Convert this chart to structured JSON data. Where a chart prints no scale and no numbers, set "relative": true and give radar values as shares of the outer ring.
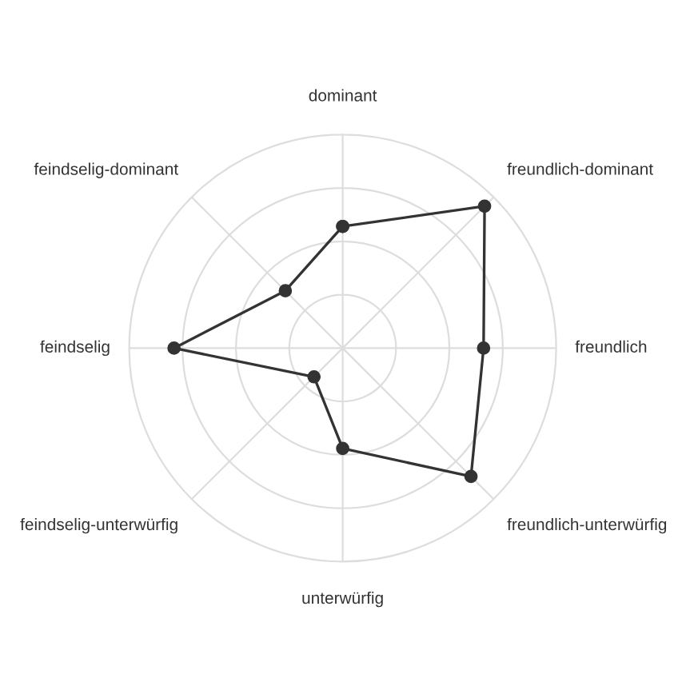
{
  "chart_data": {
    "type": "radar",
    "relative": true,
    "categories": [
      "dominant",
      "freundlich-dominant",
      "freundlich",
      "freundlich-unterwürfig",
      "unterwürfig",
      "feindselig-unterwürfig",
      "feindselig",
      "feindselig-dominant"
    ],
    "series": [
      {
        "color": "#333333",
        "values": [
          0.57,
          0.94,
          0.66,
          0.85,
          0.47,
          0.19,
          0.79,
          0.38
        ]
      }
    ],
    "grid": true,
    "marker": "circle",
    "line_style": "solid"
  }
}
